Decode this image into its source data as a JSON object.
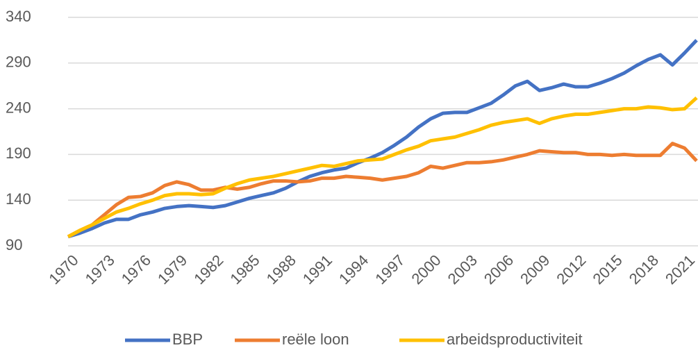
{
  "chart_data": {
    "type": "line",
    "x": [
      1970,
      1971,
      1972,
      1973,
      1974,
      1975,
      1976,
      1977,
      1978,
      1979,
      1980,
      1981,
      1982,
      1983,
      1984,
      1985,
      1986,
      1987,
      1988,
      1989,
      1990,
      1991,
      1992,
      1993,
      1994,
      1995,
      1996,
      1997,
      1998,
      1999,
      2000,
      2001,
      2002,
      2003,
      2004,
      2005,
      2006,
      2007,
      2008,
      2009,
      2010,
      2011,
      2012,
      2013,
      2014,
      2015,
      2016,
      2017,
      2018,
      2019,
      2020,
      2021,
      2022
    ],
    "series": [
      {
        "name": "BBP",
        "color": "#4472c4",
        "values": [
          100,
          104,
          109,
          115,
          119,
          119,
          124,
          127,
          131,
          133,
          134,
          133,
          132,
          134,
          138,
          142,
          145,
          148,
          153,
          160,
          166,
          170,
          173,
          175,
          181,
          186,
          192,
          200,
          209,
          220,
          229,
          235,
          236,
          236,
          241,
          246,
          255,
          265,
          270,
          260,
          263,
          267,
          264,
          264,
          268,
          273,
          279,
          287,
          294,
          299,
          288,
          301,
          315
        ]
      },
      {
        "name": "reële loon",
        "color": "#ed7d31",
        "values": [
          100,
          107,
          113,
          124,
          135,
          143,
          144,
          148,
          156,
          160,
          157,
          151,
          151,
          154,
          152,
          154,
          158,
          161,
          161,
          160,
          161,
          164,
          164,
          166,
          165,
          164,
          162,
          164,
          166,
          170,
          177,
          175,
          178,
          181,
          181,
          182,
          184,
          187,
          190,
          194,
          193,
          192,
          192,
          190,
          190,
          189,
          190,
          189,
          189,
          189,
          202,
          197,
          183
        ]
      },
      {
        "name": "arbeidsproductiviteit",
        "color": "#ffc000",
        "values": [
          100,
          107,
          113,
          120,
          127,
          131,
          136,
          140,
          145,
          147,
          147,
          146,
          147,
          153,
          158,
          162,
          164,
          166,
          169,
          172,
          175,
          178,
          177,
          180,
          183,
          184,
          185,
          190,
          195,
          199,
          205,
          207,
          209,
          213,
          217,
          222,
          225,
          227,
          229,
          224,
          229,
          232,
          234,
          234,
          236,
          238,
          240,
          240,
          242,
          241,
          239,
          240,
          252
        ]
      }
    ],
    "xlim": [
      1970,
      2022
    ],
    "xticks": [
      1970,
      1973,
      1976,
      1979,
      1982,
      1985,
      1988,
      1991,
      1994,
      1997,
      2000,
      2003,
      2006,
      2009,
      2012,
      2015,
      2018,
      2021
    ],
    "ylim": [
      90,
      340
    ],
    "yticks": [
      90,
      140,
      190,
      240,
      290,
      340
    ],
    "grid": true,
    "legend": "bottom"
  }
}
